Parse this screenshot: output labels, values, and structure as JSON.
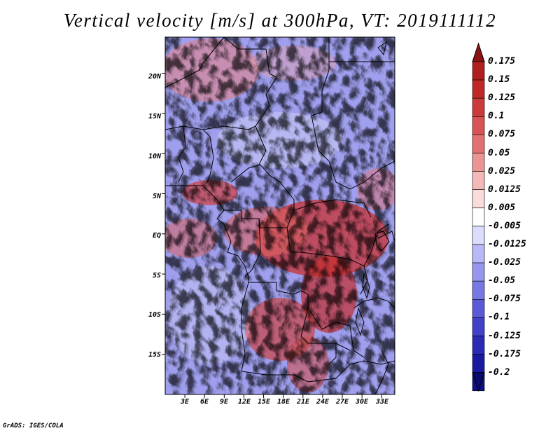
{
  "title": "Vertical velocity [m/s] at 300hPa, VT: 2019111112",
  "credit": "GrADS: IGES/COLA",
  "map": {
    "latitude_labels": [
      "20N",
      "15N",
      "10N",
      "5N",
      "EQ",
      "5S",
      "10S",
      "15S"
    ],
    "latitude_values": [
      20,
      15,
      10,
      5,
      0,
      -5,
      -10,
      -15
    ],
    "longitude_labels": [
      "3E",
      "6E",
      "9E",
      "12E",
      "15E",
      "18E",
      "21E",
      "24E",
      "27E",
      "30E",
      "33E"
    ],
    "longitude_values": [
      3,
      6,
      9,
      12,
      15,
      18,
      21,
      24,
      27,
      30,
      33
    ],
    "lat_range": [
      -20,
      24.5
    ],
    "lon_range": [
      0,
      35
    ]
  },
  "colorbar": {
    "labels": [
      "0.175",
      "0.15",
      "0.125",
      "0.1",
      "0.075",
      "0.05",
      "0.025",
      "0.0125",
      "0.005",
      "-0.005",
      "-0.0125",
      "-0.025",
      "-0.05",
      "-0.075",
      "-0.1",
      "-0.125",
      "-0.175",
      "-0.2"
    ],
    "colors": [
      "#9e1a1a",
      "#b01e1e",
      "#c02828",
      "#cc3a3a",
      "#d85454",
      "#e27070",
      "#ec9494",
      "#f4b8b8",
      "#fbdcdc",
      "#ffffff",
      "#dcdcfc",
      "#b8b8f6",
      "#9696ee",
      "#7878e4",
      "#5a5ad8",
      "#4040c8",
      "#2a2ab6",
      "#1a1aa0",
      "#0e0e88"
    ],
    "top_color": "#8a1414",
    "bottom_color": "#0a0a70"
  }
}
